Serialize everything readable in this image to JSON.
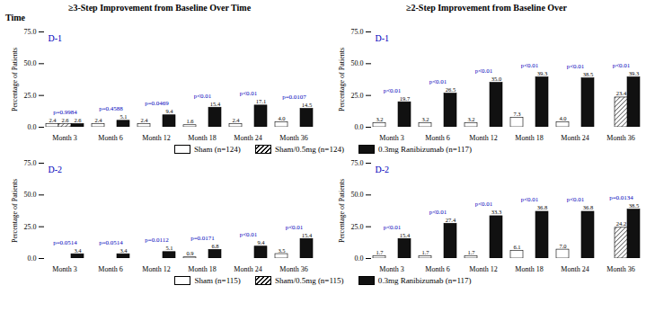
{
  "chart_data": [
    {
      "type": "bar",
      "title": "≥3-Step Improvement from Baseline Over Time",
      "subtitle": "Time",
      "categories": [
        "Month 3",
        "Month 6",
        "Month 12",
        "Month 18",
        "Month 24",
        "Month 36"
      ],
      "ylabel": "Percentage of Patients",
      "ylim": [
        0,
        75
      ],
      "yticks": [
        {
          "value": 0,
          "label": "0.0"
        },
        {
          "value": 25,
          "label": "25.0"
        },
        {
          "value": 50,
          "label": "50.0"
        },
        {
          "value": 75,
          "label": "75.0"
        }
      ],
      "data_labels": true,
      "legend": "bottom",
      "series": [
        {
          "name": "Sham (n=124)",
          "color": "#ffffff",
          "values": [
            2.4,
            2.4,
            2.4,
            1.6,
            2.4,
            4.0
          ],
          "value_labels": [
            "2.4",
            "2.4",
            "2.4",
            "1.6",
            "2.4",
            "4.0"
          ]
        },
        {
          "name": "Sham/0.5mg (n=124)",
          "color": "#ffffff",
          "values": [
            2.6,
            null,
            null,
            null,
            null,
            null
          ],
          "value_labels": [
            "2.6",
            null,
            null,
            null,
            null,
            null
          ]
        },
        {
          "name": "0.3mg Ranibizumab (n=117)",
          "color": "#111111",
          "values": [
            2.6,
            5.1,
            9.4,
            15.4,
            17.1,
            14.5
          ],
          "value_labels": [
            "2.6",
            "5.1",
            "9.4",
            "15.4",
            "17.1",
            "14.5"
          ]
        }
      ],
      "annotations": [
        {
          "text": "D-1",
          "color": "#0000bb"
        },
        {
          "category": "Month 3",
          "text": "p=0.9984",
          "color": "#0000bb"
        },
        {
          "category": "Month 6",
          "text": "p=0.4588",
          "color": "#0000bb"
        },
        {
          "category": "Month 12",
          "text": "p=0.0469",
          "color": "#0000bb"
        },
        {
          "category": "Month 18",
          "text": "p<0.01",
          "color": "#0000bb"
        },
        {
          "category": "Month 24",
          "text": "p<0.01",
          "color": "#0000bb"
        },
        {
          "category": "Month 36",
          "text": "p=0.0107",
          "color": "#0000bb"
        }
      ]
    },
    {
      "type": "bar",
      "title": "≥2-Step Improvement from Baseline Over",
      "categories": [
        "Month 3",
        "Month 6",
        "Month 12",
        "Month 18",
        "Month 24",
        "Month 36"
      ],
      "ylabel": "Percentage of Patients",
      "ylim": [
        0,
        75
      ],
      "yticks": [
        {
          "value": 0,
          "label": "0.0"
        },
        {
          "value": 25,
          "label": "25.0"
        },
        {
          "value": 50,
          "label": "50.0"
        },
        {
          "value": 75,
          "label": "75.0"
        }
      ],
      "data_labels": true,
      "series": [
        {
          "name": "Sham (n=124)",
          "color": "#ffffff",
          "values": [
            3.2,
            3.2,
            3.2,
            7.3,
            4.0,
            null
          ],
          "value_labels": [
            "3.2",
            "3.2",
            "3.2",
            "7.3",
            "4.0",
            null
          ]
        },
        {
          "name": "Sham/0.5mg (n=124)",
          "color": "#ffffff",
          "values": [
            null,
            null,
            null,
            null,
            null,
            23.4
          ],
          "value_labels": [
            null,
            null,
            null,
            null,
            null,
            "23.4"
          ]
        },
        {
          "name": "0.3mg Ranibizumab (n=117)",
          "color": "#111111",
          "values": [
            19.7,
            26.5,
            35.0,
            39.3,
            38.5,
            39.3
          ],
          "value_labels": [
            "19.7",
            "26.5",
            "35.0",
            "39.3",
            "38.5",
            "39.3"
          ]
        }
      ],
      "annotations": [
        {
          "text": "D-1",
          "color": "#0000bb"
        },
        {
          "category": "Month 3",
          "text": "p<0.01",
          "color": "#0000bb"
        },
        {
          "category": "Month 6",
          "text": "p<0.01",
          "color": "#0000bb"
        },
        {
          "category": "Month 12",
          "text": "p<0.01",
          "color": "#0000bb"
        },
        {
          "category": "Month 18",
          "text": "p<0.01",
          "color": "#0000bb"
        },
        {
          "category": "Month 24",
          "text": "p<0.01",
          "color": "#0000bb"
        },
        {
          "category": "Month 36",
          "text": "p<0.01",
          "color": "#0000bb"
        }
      ]
    },
    {
      "type": "bar",
      "categories": [
        "Month 3",
        "Month 6",
        "Month 12",
        "Month 18",
        "Month 24",
        "Month 36"
      ],
      "ylabel": "Percentage of Patients",
      "ylim": [
        0,
        75
      ],
      "yticks": [
        {
          "value": 0,
          "label": "0.0"
        },
        {
          "value": 25,
          "label": "25.0"
        },
        {
          "value": 50,
          "label": "50.0"
        },
        {
          "value": 75,
          "label": "75.0"
        }
      ],
      "data_labels": true,
      "legend": "bottom",
      "series": [
        {
          "name": "Sham (n=115)",
          "color": "#ffffff",
          "values": [
            0.0,
            0.0,
            0.0,
            0.9,
            0.0,
            3.5
          ],
          "value_labels": [
            null,
            null,
            null,
            "0.9",
            null,
            "3.5"
          ]
        },
        {
          "name": "Sham/0.5mg (n=115)",
          "color": "#ffffff",
          "values": [
            null,
            null,
            null,
            null,
            null,
            null
          ],
          "value_labels": [
            null,
            null,
            null,
            null,
            null,
            null
          ]
        },
        {
          "name": "0.3mg Ranibizumab (n=117)",
          "color": "#111111",
          "values": [
            3.4,
            3.4,
            5.1,
            6.8,
            9.4,
            15.4
          ],
          "value_labels": [
            "3.4",
            "3.4",
            "5.1",
            "6.8",
            "9.4",
            "15.4"
          ]
        }
      ],
      "annotations": [
        {
          "text": "D-2",
          "color": "#0000bb"
        },
        {
          "category": "Month 3",
          "text": "p=0.0514",
          "color": "#0000bb"
        },
        {
          "category": "Month 6",
          "text": "p=0.0514",
          "color": "#0000bb"
        },
        {
          "category": "Month 12",
          "text": "p=0.0112",
          "color": "#0000bb"
        },
        {
          "category": "Month 18",
          "text": "p=0.0171",
          "color": "#0000bb"
        },
        {
          "category": "Month 24",
          "text": "p<0.01",
          "color": "#0000bb"
        },
        {
          "category": "Month 36",
          "text": "p<0.01",
          "color": "#0000bb"
        }
      ]
    },
    {
      "type": "bar",
      "categories": [
        "Month 3",
        "Month 6",
        "Month 12",
        "Month 18",
        "Month 24",
        "Month 36"
      ],
      "ylabel": "Percentage of Patients",
      "ylim": [
        0,
        75
      ],
      "yticks": [
        {
          "value": 0,
          "label": "0.0"
        },
        {
          "value": 25,
          "label": "25.0"
        },
        {
          "value": 50,
          "label": "50.0"
        },
        {
          "value": 75,
          "label": "75.0"
        }
      ],
      "data_labels": true,
      "series": [
        {
          "name": "Sham (n=115)",
          "color": "#ffffff",
          "values": [
            1.7,
            1.7,
            1.7,
            6.1,
            7.0,
            null
          ],
          "value_labels": [
            "1.7",
            "1.7",
            "1.7",
            "6.1",
            "7.0",
            null
          ]
        },
        {
          "name": "Sham/0.5mg (n=115)",
          "color": "#ffffff",
          "values": [
            null,
            null,
            null,
            null,
            null,
            24.2
          ],
          "value_labels": [
            null,
            null,
            null,
            null,
            null,
            "24.2"
          ]
        },
        {
          "name": "0.3mg Ranibizumab (n=117)",
          "color": "#111111",
          "values": [
            15.4,
            27.4,
            33.3,
            36.8,
            36.8,
            38.5
          ],
          "value_labels": [
            "15.4",
            "27.4",
            "33.3",
            "36.8",
            "36.8",
            "38.5"
          ]
        }
      ],
      "annotations": [
        {
          "text": "D-2",
          "color": "#0000bb"
        },
        {
          "category": "Month 3",
          "text": "p<0.01",
          "color": "#0000bb"
        },
        {
          "category": "Month 6",
          "text": "p<0.01",
          "color": "#0000bb"
        },
        {
          "category": "Month 12",
          "text": "p<0.01",
          "color": "#0000bb"
        },
        {
          "category": "Month 18",
          "text": "p<0.01",
          "color": "#0000bb"
        },
        {
          "category": "Month 24",
          "text": "p<0.01",
          "color": "#0000bb"
        },
        {
          "category": "Month 36",
          "text": "p=0.0134",
          "color": "#0000bb"
        }
      ]
    }
  ]
}
